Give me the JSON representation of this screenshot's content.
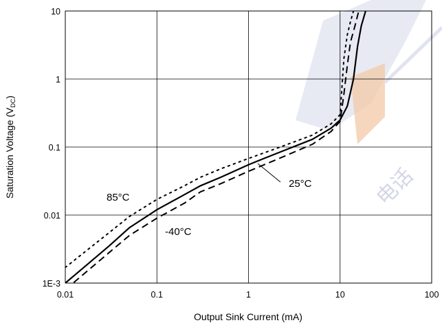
{
  "chart_data": {
    "type": "line",
    "xscale": "log",
    "yscale": "log",
    "xlim": [
      0.01,
      100
    ],
    "ylim": [
      0.001,
      10
    ],
    "grid": true,
    "xlabel": "Output Sink Current (mA)",
    "ylabel": {
      "main": "Saturation Voltage (V",
      "sub": "DC",
      "close": ")"
    },
    "x_ticks": [
      "0.01",
      "0.1",
      "1",
      "10",
      "100"
    ],
    "y_ticks": [
      "1E-3",
      "0.01",
      "0.1",
      "1",
      "10"
    ],
    "series": [
      {
        "name": "25°C",
        "style": "solid",
        "x": [
          0.01,
          0.03,
          0.05,
          0.1,
          0.2,
          0.3,
          0.5,
          1,
          2,
          5,
          8,
          10,
          12,
          14,
          15.5,
          17,
          19
        ],
        "y": [
          0.001,
          0.0035,
          0.0065,
          0.012,
          0.02,
          0.027,
          0.036,
          0.055,
          0.08,
          0.13,
          0.19,
          0.25,
          0.4,
          1.0,
          3.0,
          6.0,
          10
        ]
      },
      {
        "name": "-40°C",
        "style": "dashed",
        "x": [
          0.01,
          0.03,
          0.05,
          0.1,
          0.2,
          0.3,
          0.5,
          1,
          2,
          5,
          8,
          10,
          11,
          12,
          13,
          14.5,
          16
        ],
        "y": [
          0.0008,
          0.0028,
          0.005,
          0.009,
          0.015,
          0.022,
          0.029,
          0.044,
          0.065,
          0.11,
          0.17,
          0.24,
          0.6,
          1.6,
          3.5,
          6.0,
          10
        ]
      },
      {
        "name": "85°C",
        "style": "dotted",
        "x": [
          0.01,
          0.03,
          0.05,
          0.1,
          0.2,
          0.3,
          0.5,
          1,
          2,
          5,
          8,
          10,
          10.5,
          11,
          12,
          13,
          14
        ],
        "y": [
          0.0017,
          0.0055,
          0.0095,
          0.017,
          0.027,
          0.036,
          0.048,
          0.068,
          0.095,
          0.15,
          0.22,
          0.3,
          0.8,
          2.0,
          4.5,
          7.0,
          10
        ]
      }
    ],
    "annotations": [
      {
        "text": "85°C",
        "series": "85°C"
      },
      {
        "text": "-40°C",
        "series": "-40°C"
      },
      {
        "text": "25°C",
        "series": "25°C"
      }
    ]
  },
  "watermark": {
    "text": "电话"
  }
}
